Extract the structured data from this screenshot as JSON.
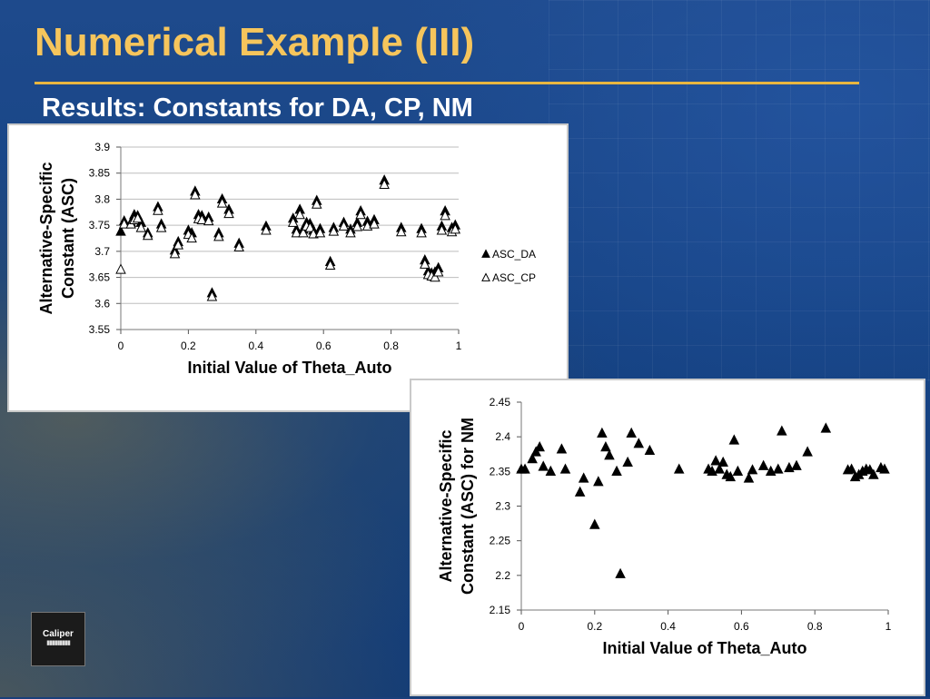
{
  "slide": {
    "title": "Numerical Example (III)",
    "subtitle": "Results: Constants for DA, CP, NM",
    "logo_text": "Caliper"
  },
  "chart_data": [
    {
      "type": "scatter",
      "xlabel": "Initial Value of Theta_Auto",
      "ylabel": [
        "Alternative-Specific",
        "Constant (ASC)"
      ],
      "xlim": [
        0,
        1
      ],
      "ylim": [
        3.55,
        3.9
      ],
      "x_ticks": [
        "0",
        "0.2",
        "0.4",
        "0.6",
        "0.8",
        "1"
      ],
      "y_ticks": [
        "3.55",
        "3.6",
        "3.65",
        "3.7",
        "3.75",
        "3.8",
        "3.85",
        "3.9"
      ],
      "grid": true,
      "legend_position": "right",
      "series": [
        {
          "name": "ASC_DA",
          "marker": "filled-triangle",
          "color": "#000000",
          "points": [
            [
              0.0,
              3.738
            ],
            [
              0.01,
              3.758
            ],
            [
              0.03,
              3.755
            ],
            [
              0.04,
              3.77
            ],
            [
              0.05,
              3.768
            ],
            [
              0.06,
              3.755
            ],
            [
              0.08,
              3.735
            ],
            [
              0.11,
              3.785
            ],
            [
              0.12,
              3.752
            ],
            [
              0.16,
              3.702
            ],
            [
              0.17,
              3.718
            ],
            [
              0.2,
              3.74
            ],
            [
              0.21,
              3.735
            ],
            [
              0.22,
              3.815
            ],
            [
              0.23,
              3.77
            ],
            [
              0.24,
              3.768
            ],
            [
              0.26,
              3.765
            ],
            [
              0.27,
              3.62
            ],
            [
              0.29,
              3.735
            ],
            [
              0.3,
              3.8
            ],
            [
              0.32,
              3.78
            ],
            [
              0.35,
              3.715
            ],
            [
              0.43,
              3.748
            ],
            [
              0.51,
              3.763
            ],
            [
              0.52,
              3.742
            ],
            [
              0.53,
              3.78
            ],
            [
              0.54,
              3.742
            ],
            [
              0.55,
              3.755
            ],
            [
              0.56,
              3.753
            ],
            [
              0.57,
              3.74
            ],
            [
              0.58,
              3.797
            ],
            [
              0.59,
              3.743
            ],
            [
              0.62,
              3.68
            ],
            [
              0.63,
              3.745
            ],
            [
              0.66,
              3.755
            ],
            [
              0.68,
              3.742
            ],
            [
              0.7,
              3.755
            ],
            [
              0.71,
              3.777
            ],
            [
              0.73,
              3.757
            ],
            [
              0.75,
              3.76
            ],
            [
              0.78,
              3.836
            ],
            [
              0.83,
              3.745
            ],
            [
              0.89,
              3.743
            ],
            [
              0.9,
              3.683
            ],
            [
              0.91,
              3.662
            ],
            [
              0.92,
              3.658
            ],
            [
              0.93,
              3.66
            ],
            [
              0.94,
              3.668
            ],
            [
              0.95,
              3.748
            ],
            [
              0.96,
              3.777
            ],
            [
              0.98,
              3.745
            ],
            [
              0.99,
              3.75
            ]
          ]
        },
        {
          "name": "ASC_CP",
          "marker": "open-triangle",
          "color": "#000000",
          "points": [
            [
              0.0,
              3.665
            ],
            [
              0.01,
              3.752
            ],
            [
              0.03,
              3.752
            ],
            [
              0.04,
              3.76
            ],
            [
              0.05,
              3.763
            ],
            [
              0.06,
              3.745
            ],
            [
              0.08,
              3.73
            ],
            [
              0.11,
              3.778
            ],
            [
              0.12,
              3.745
            ],
            [
              0.16,
              3.695
            ],
            [
              0.17,
              3.712
            ],
            [
              0.2,
              3.732
            ],
            [
              0.21,
              3.725
            ],
            [
              0.22,
              3.808
            ],
            [
              0.23,
              3.762
            ],
            [
              0.24,
              3.76
            ],
            [
              0.26,
              3.758
            ],
            [
              0.27,
              3.613
            ],
            [
              0.29,
              3.728
            ],
            [
              0.3,
              3.792
            ],
            [
              0.32,
              3.772
            ],
            [
              0.35,
              3.708
            ],
            [
              0.43,
              3.74
            ],
            [
              0.51,
              3.755
            ],
            [
              0.52,
              3.735
            ],
            [
              0.53,
              3.77
            ],
            [
              0.54,
              3.735
            ],
            [
              0.55,
              3.748
            ],
            [
              0.56,
              3.745
            ],
            [
              0.57,
              3.733
            ],
            [
              0.58,
              3.79
            ],
            [
              0.59,
              3.735
            ],
            [
              0.62,
              3.673
            ],
            [
              0.63,
              3.738
            ],
            [
              0.66,
              3.748
            ],
            [
              0.68,
              3.735
            ],
            [
              0.7,
              3.747
            ],
            [
              0.71,
              3.77
            ],
            [
              0.73,
              3.748
            ],
            [
              0.75,
              3.752
            ],
            [
              0.78,
              3.828
            ],
            [
              0.83,
              3.737
            ],
            [
              0.89,
              3.735
            ],
            [
              0.9,
              3.675
            ],
            [
              0.91,
              3.655
            ],
            [
              0.92,
              3.652
            ],
            [
              0.93,
              3.65
            ],
            [
              0.94,
              3.66
            ],
            [
              0.95,
              3.74
            ],
            [
              0.96,
              3.768
            ],
            [
              0.98,
              3.737
            ],
            [
              0.99,
              3.742
            ]
          ]
        }
      ]
    },
    {
      "type": "scatter",
      "xlabel": "Initial Value of Theta_Auto",
      "ylabel": [
        "Alternative-Specific",
        "Constant (ASC) for NM"
      ],
      "xlim": [
        0,
        1
      ],
      "ylim": [
        2.15,
        2.45
      ],
      "x_ticks": [
        "0",
        "0.2",
        "0.4",
        "0.6",
        "0.8",
        "1"
      ],
      "y_ticks": [
        "2.15",
        "2.2",
        "2.25",
        "2.3",
        "2.35",
        "2.4",
        "2.45"
      ],
      "grid": false,
      "series": [
        {
          "marker": "filled-triangle",
          "color": "#000000",
          "points": [
            [
              0.0,
              2.353
            ],
            [
              0.01,
              2.353
            ],
            [
              0.03,
              2.368
            ],
            [
              0.04,
              2.378
            ],
            [
              0.05,
              2.385
            ],
            [
              0.06,
              2.357
            ],
            [
              0.08,
              2.35
            ],
            [
              0.11,
              2.382
            ],
            [
              0.12,
              2.353
            ],
            [
              0.16,
              2.32
            ],
            [
              0.17,
              2.34
            ],
            [
              0.2,
              2.273
            ],
            [
              0.21,
              2.335
            ],
            [
              0.22,
              2.405
            ],
            [
              0.23,
              2.385
            ],
            [
              0.24,
              2.373
            ],
            [
              0.26,
              2.35
            ],
            [
              0.27,
              2.202
            ],
            [
              0.29,
              2.363
            ],
            [
              0.3,
              2.405
            ],
            [
              0.32,
              2.39
            ],
            [
              0.35,
              2.38
            ],
            [
              0.43,
              2.353
            ],
            [
              0.51,
              2.353
            ],
            [
              0.52,
              2.35
            ],
            [
              0.53,
              2.365
            ],
            [
              0.54,
              2.353
            ],
            [
              0.55,
              2.363
            ],
            [
              0.56,
              2.345
            ],
            [
              0.57,
              2.342
            ],
            [
              0.58,
              2.395
            ],
            [
              0.59,
              2.35
            ],
            [
              0.62,
              2.34
            ],
            [
              0.63,
              2.352
            ],
            [
              0.66,
              2.358
            ],
            [
              0.68,
              2.35
            ],
            [
              0.7,
              2.353
            ],
            [
              0.71,
              2.408
            ],
            [
              0.73,
              2.355
            ],
            [
              0.75,
              2.358
            ],
            [
              0.78,
              2.378
            ],
            [
              0.83,
              2.412
            ],
            [
              0.89,
              2.352
            ],
            [
              0.9,
              2.353
            ],
            [
              0.91,
              2.342
            ],
            [
              0.92,
              2.345
            ],
            [
              0.93,
              2.35
            ],
            [
              0.94,
              2.353
            ],
            [
              0.95,
              2.352
            ],
            [
              0.96,
              2.345
            ],
            [
              0.98,
              2.355
            ],
            [
              0.99,
              2.353
            ]
          ]
        }
      ]
    }
  ]
}
